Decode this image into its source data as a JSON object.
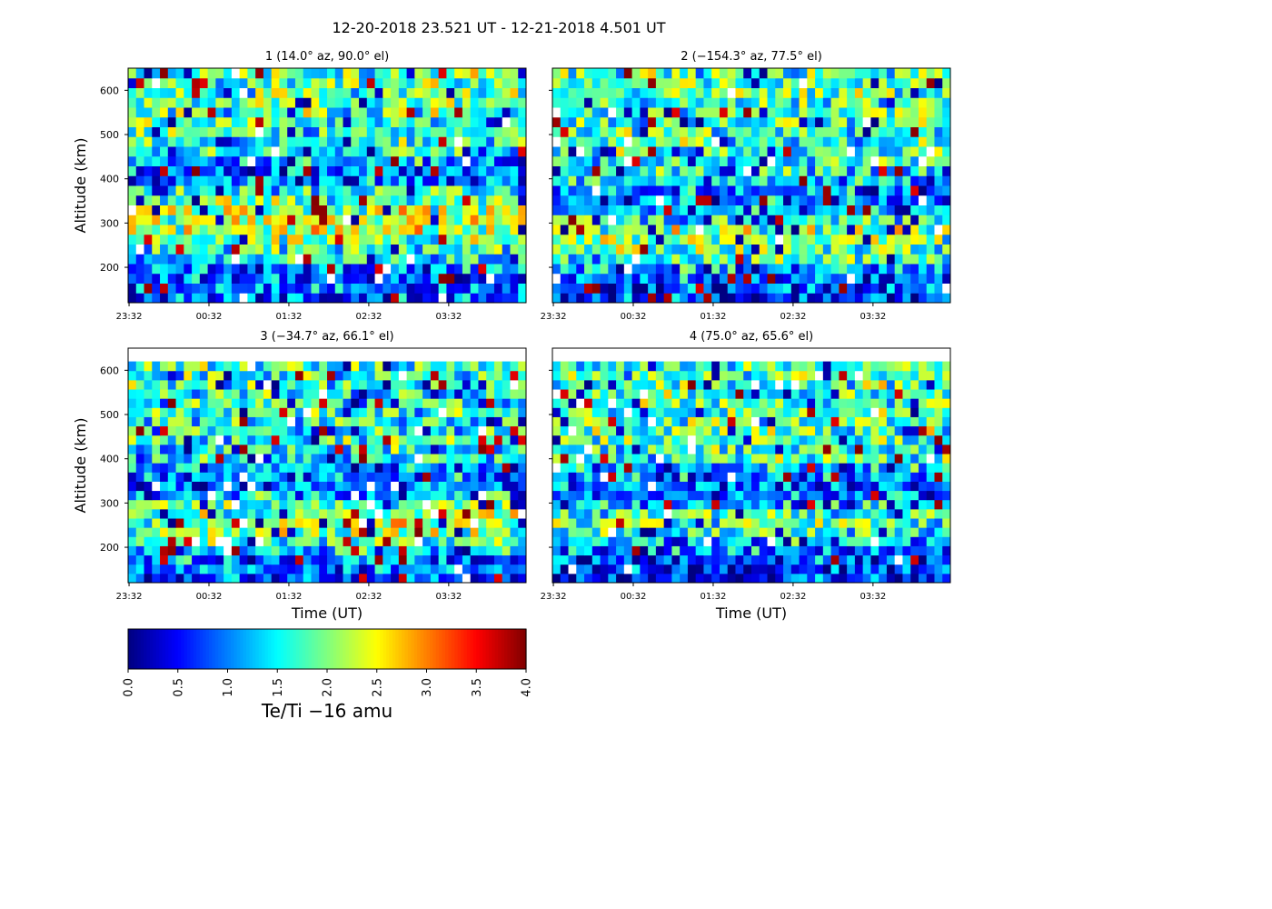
{
  "chart_data": {
    "type": "heatmap",
    "title": "12-20-2018 23.521 UT - 12-21-2018 4.501 UT",
    "colormap": "jet",
    "colorbar": {
      "label": "Te/Ti  −16 amu",
      "vmin": 0.0,
      "vmax": 4.0,
      "ticks": [
        "0.0",
        "0.5",
        "1.0",
        "1.5",
        "2.0",
        "2.5",
        "3.0",
        "3.5",
        "4.0"
      ]
    },
    "time_range_hours": [
      23.521,
      28.501
    ],
    "altitude_range_km": [
      120,
      650
    ],
    "yticks": [
      200,
      300,
      400,
      500,
      600
    ],
    "xticks": [
      "23:32",
      "00:32",
      "01:32",
      "02:32",
      "03:32"
    ],
    "xtick_hours": [
      23.533,
      24.533,
      25.533,
      26.533,
      27.533
    ],
    "grid_time_bins": 50,
    "grid_alt_bins": 24,
    "panels": [
      {
        "id": 1,
        "title": "1 (14.0° az,  90.0° el)",
        "ylabel": "Altitude (km)",
        "xlabel": "",
        "data_top_km": 650,
        "mean_profile_by_alt_bin": [
          0.8,
          0.8,
          0.9,
          1.1,
          1.4,
          1.7,
          2.0,
          2.2,
          2.2,
          2.1,
          1.8,
          1.4,
          1.0,
          0.9,
          1.2,
          1.5,
          1.6,
          1.7,
          1.8,
          1.8,
          1.8,
          1.8,
          1.8,
          1.8
        ]
      },
      {
        "id": 2,
        "title": "2 (−154.3° az,  77.5° el)",
        "ylabel": "",
        "xlabel": "",
        "data_top_km": 650,
        "mean_profile_by_alt_bin": [
          0.7,
          0.8,
          0.9,
          1.2,
          1.6,
          1.8,
          2.0,
          2.0,
          1.6,
          1.2,
          1.0,
          1.1,
          1.3,
          1.5,
          1.6,
          1.7,
          1.7,
          1.7,
          1.7,
          1.8,
          1.8,
          1.8,
          1.8,
          1.8
        ]
      },
      {
        "id": 3,
        "title": "3 (−34.7° az,  66.1° el)",
        "ylabel": "Altitude (km)",
        "xlabel": "Time (UT)",
        "data_top_km": 620,
        "mean_profile_by_alt_bin": [
          0.8,
          0.9,
          1.0,
          1.4,
          1.8,
          2.0,
          2.1,
          2.0,
          1.7,
          1.3,
          1.0,
          1.0,
          1.2,
          1.4,
          1.5,
          1.6,
          1.6,
          1.6,
          1.6,
          1.6,
          1.6,
          1.6,
          1.6,
          1.6
        ]
      },
      {
        "id": 4,
        "title": "4 (75.0° az,  65.6° el)",
        "ylabel": "",
        "xlabel": "Time (UT)",
        "data_top_km": 620,
        "mean_profile_by_alt_bin": [
          0.6,
          0.7,
          0.8,
          1.0,
          1.3,
          1.6,
          1.8,
          1.7,
          1.3,
          1.0,
          0.9,
          1.0,
          1.3,
          1.6,
          1.7,
          1.8,
          1.8,
          1.8,
          1.8,
          1.8,
          1.8,
          1.8,
          1.8,
          1.8
        ]
      }
    ]
  }
}
